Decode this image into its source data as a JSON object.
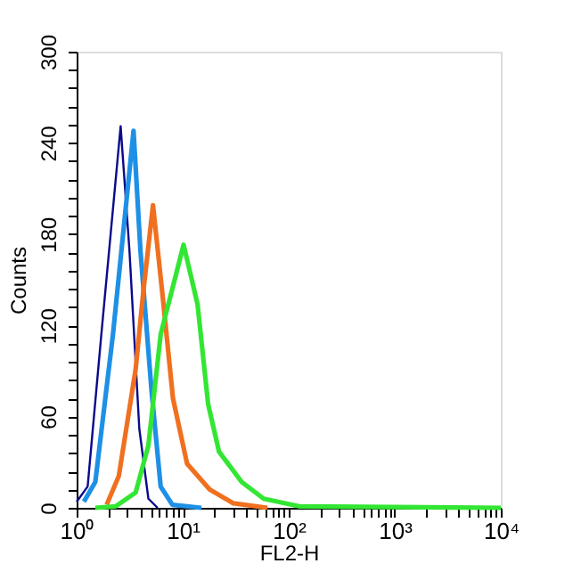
{
  "chart_data": {
    "type": "line",
    "xlabel": "FL2-H",
    "ylabel": "Counts",
    "log": "x",
    "grid": false,
    "legend": false,
    "marker": "none",
    "line_style": "solid",
    "xlim": [
      1,
      10000
    ],
    "ylim": [
      0,
      300
    ],
    "xticks": [
      {
        "value": 1,
        "label": "10⁰"
      },
      {
        "value": 2,
        "label": null
      },
      {
        "value": 3,
        "label": null
      },
      {
        "value": 4,
        "label": null
      },
      {
        "value": 5,
        "label": null
      },
      {
        "value": 6,
        "label": null
      },
      {
        "value": 7,
        "label": null
      },
      {
        "value": 8,
        "label": null
      },
      {
        "value": 9,
        "label": null
      },
      {
        "value": 10,
        "label": "10¹"
      },
      {
        "value": 20,
        "label": null
      },
      {
        "value": 30,
        "label": null
      },
      {
        "value": 40,
        "label": null
      },
      {
        "value": 50,
        "label": null
      },
      {
        "value": 60,
        "label": null
      },
      {
        "value": 70,
        "label": null
      },
      {
        "value": 80,
        "label": null
      },
      {
        "value": 90,
        "label": null
      },
      {
        "value": 100,
        "label": "10²"
      },
      {
        "value": 200,
        "label": null
      },
      {
        "value": 300,
        "label": null
      },
      {
        "value": 400,
        "label": null
      },
      {
        "value": 500,
        "label": null
      },
      {
        "value": 600,
        "label": null
      },
      {
        "value": 700,
        "label": null
      },
      {
        "value": 800,
        "label": null
      },
      {
        "value": 900,
        "label": null
      },
      {
        "value": 1000,
        "label": "10³"
      },
      {
        "value": 2000,
        "label": null
      },
      {
        "value": 3000,
        "label": null
      },
      {
        "value": 4000,
        "label": null
      },
      {
        "value": 5000,
        "label": null
      },
      {
        "value": 6000,
        "label": null
      },
      {
        "value": 7000,
        "label": null
      },
      {
        "value": 8000,
        "label": null
      },
      {
        "value": 9000,
        "label": null
      },
      {
        "value": 10000,
        "label": "10⁴"
      }
    ],
    "yticks": [
      0,
      {
        "value": 12,
        "label": null
      },
      {
        "value": 24,
        "label": null
      },
      {
        "value": 36,
        "label": null
      },
      {
        "value": 48,
        "label": null
      },
      60,
      {
        "value": 72,
        "label": null
      },
      {
        "value": 84,
        "label": null
      },
      {
        "value": 96,
        "label": null
      },
      {
        "value": 108,
        "label": null
      },
      120,
      {
        "value": 132,
        "label": null
      },
      {
        "value": 144,
        "label": null
      },
      {
        "value": 156,
        "label": null
      },
      {
        "value": 168,
        "label": null
      },
      180,
      {
        "value": 192,
        "label": null
      },
      {
        "value": 204,
        "label": null
      },
      {
        "value": 216,
        "label": null
      },
      {
        "value": 228,
        "label": null
      },
      240,
      {
        "value": 252,
        "label": null
      },
      {
        "value": 264,
        "label": null
      },
      {
        "value": 276,
        "label": null
      },
      {
        "value": 288,
        "label": null
      },
      300
    ],
    "series": [
      {
        "color": "#0a0a8c",
        "x": [
          1,
          1.27,
          1.71,
          2.6,
          3.15,
          3.9,
          4.75,
          5.8
        ],
        "values": [
          4,
          14,
          114,
          251,
          169,
          52,
          6,
          0
        ]
      },
      {
        "color": "#1e90e6",
        "x": [
          1.17,
          1.5,
          2.2,
          3.44,
          4.0,
          5.1,
          6.2,
          8.0,
          15
        ],
        "values": [
          4,
          17,
          114,
          248,
          169,
          76,
          14,
          2,
          0
        ]
      },
      {
        "color": "#f07020",
        "x": [
          1.92,
          2.5,
          3.6,
          4.25,
          5.25,
          6.5,
          8.1,
          11,
          18,
          30,
          63
        ],
        "values": [
          2,
          21,
          91,
          142,
          199,
          138,
          72,
          29,
          12,
          3,
          0
        ]
      },
      {
        "color": "#33e633",
        "x": [
          1.5,
          2.33,
          3.6,
          4.75,
          6.2,
          10.2,
          13.8,
          17.4,
          22,
          36,
          58,
          125,
          10000
        ],
        "values": [
          0,
          1,
          10,
          41,
          114,
          173,
          134,
          68,
          37,
          17,
          6,
          1,
          0
        ]
      }
    ]
  }
}
